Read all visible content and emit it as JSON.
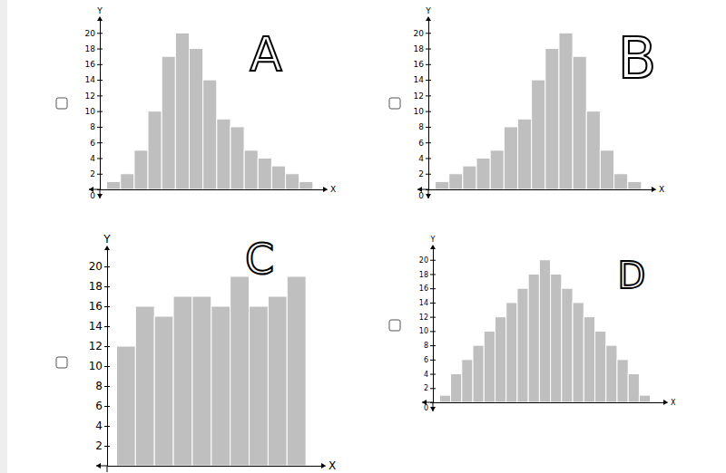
{
  "chart_data": [
    {
      "type": "histogram",
      "title": "A",
      "x_label": "X",
      "y_label": "Y",
      "bins": [
        1,
        2,
        3,
        4,
        5,
        6,
        7,
        8,
        9,
        10,
        11,
        12,
        13,
        14,
        15,
        16
      ],
      "values": [
        1,
        2,
        5,
        10,
        17,
        20,
        18,
        14,
        9,
        8,
        5,
        4,
        3,
        2,
        1
      ],
      "color": "#bfbfbf",
      "xlim": [
        0.5,
        17
      ],
      "ylim": [
        0,
        22
      ],
      "yticks": [
        0,
        2,
        4,
        6,
        8,
        10,
        12,
        14,
        16,
        18,
        20
      ],
      "tick_labels": "y"
    },
    {
      "type": "histogram",
      "title": "B",
      "x_label": "X",
      "y_label": "Y",
      "bins": [
        1,
        2,
        3,
        4,
        5,
        6,
        7,
        8,
        9,
        10,
        11,
        12,
        13,
        14,
        15,
        16
      ],
      "values": [
        1,
        2,
        3,
        4,
        5,
        8,
        9,
        14,
        18,
        20,
        17,
        10,
        5,
        2,
        1
      ],
      "color": "#bfbfbf",
      "xlim": [
        0.5,
        17
      ],
      "ylim": [
        0,
        22
      ],
      "yticks": [
        0,
        2,
        4,
        6,
        8,
        10,
        12,
        14,
        16,
        18,
        20
      ],
      "tick_labels": "y"
    },
    {
      "type": "histogram",
      "title": "C",
      "x_label": "X",
      "y_label": "Y",
      "bins": [
        1,
        2,
        3,
        4,
        5,
        6,
        7,
        8,
        9,
        10,
        11
      ],
      "values": [
        12,
        16,
        15,
        17,
        17,
        16,
        19,
        16,
        17,
        19
      ],
      "color": "#bfbfbf",
      "xlim": [
        0.5,
        12
      ],
      "ylim": [
        0,
        22
      ],
      "yticks": [
        2,
        4,
        6,
        8,
        10,
        12,
        14,
        16,
        18,
        20
      ],
      "tick_labels": "y"
    },
    {
      "type": "histogram",
      "title": "D",
      "x_label": "X",
      "y_label": "Y",
      "bins": [
        1,
        2,
        3,
        4,
        5,
        6,
        7,
        8,
        9,
        10,
        11,
        12,
        13,
        14,
        15,
        16,
        17,
        18,
        19,
        20
      ],
      "values": [
        1,
        4,
        6,
        8,
        10,
        12,
        14,
        16,
        18,
        20,
        18,
        16,
        14,
        12,
        10,
        8,
        6,
        4,
        1
      ],
      "color": "#bfbfbf",
      "xlim": [
        0.4,
        21.5
      ],
      "ylim": [
        0,
        22
      ],
      "yticks": [
        0,
        2,
        4,
        6,
        8,
        10,
        12,
        14,
        16,
        18,
        20
      ],
      "tick_labels": "y"
    }
  ]
}
